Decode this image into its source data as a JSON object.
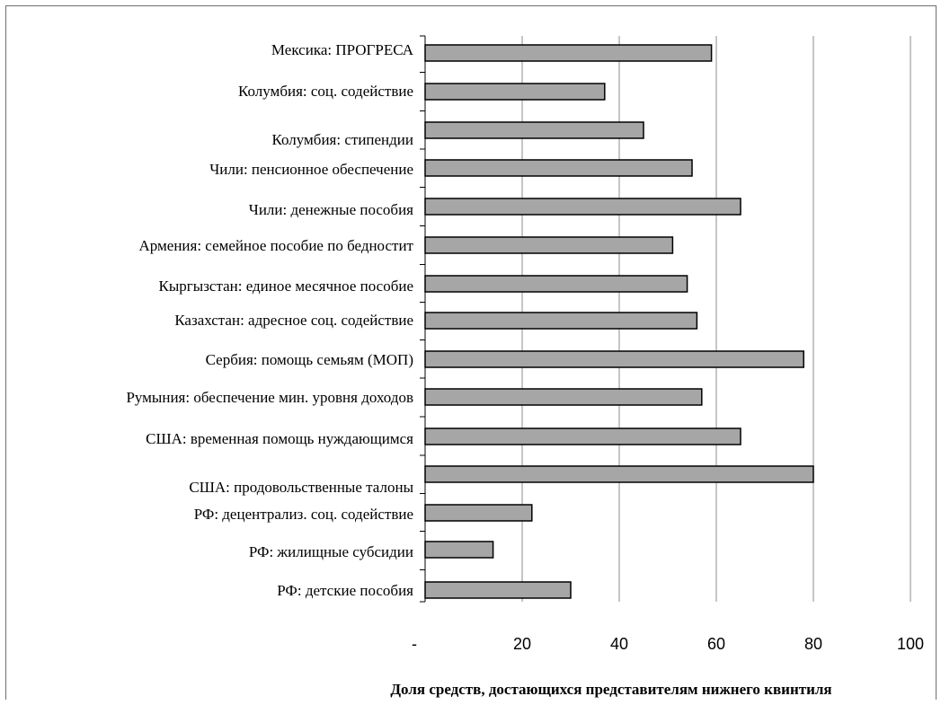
{
  "chart_data": {
    "type": "bar",
    "orientation": "horizontal",
    "categories": [
      "Мексика: ПРОГРЕСА",
      "Колумбия: соц. содействие",
      "Колумбия: стипендии",
      "Чили: пенсионное обеспечение",
      "Чили: денежные пособия",
      "Армения: семейное пособие по бедностит",
      "Кыргызстан: единое месячное пособие",
      "Казахстан: адресное соц. содействие",
      "Сербия: помощь семьям (МОП)",
      "Румыния: обеспечение мин. уровня доходов",
      "США: временная  помощь нуждающимся",
      "США: продовольственные талоны",
      "РФ: децентрализ. соц. содействие",
      "РФ: жилищные субсидии",
      "РФ: детские пособия"
    ],
    "values": [
      59,
      37,
      45,
      55,
      65,
      51,
      54,
      56,
      78,
      57,
      65,
      80,
      22,
      14,
      30
    ],
    "xlim": [
      0,
      100
    ],
    "x_ticks": [
      0,
      20,
      40,
      60,
      80,
      100
    ],
    "x_tick_labels": [
      "-",
      "20",
      "40",
      "60",
      "80",
      "100"
    ],
    "xlabel": "Доля средств, достающихся представителям нижнего квинтиля",
    "ylabel": "",
    "title": "",
    "grid": "vertical",
    "legend": "none",
    "bar_color": "#a6a6a6",
    "bar_stroke": "#000000",
    "grid_color": "#8c8c8c"
  }
}
